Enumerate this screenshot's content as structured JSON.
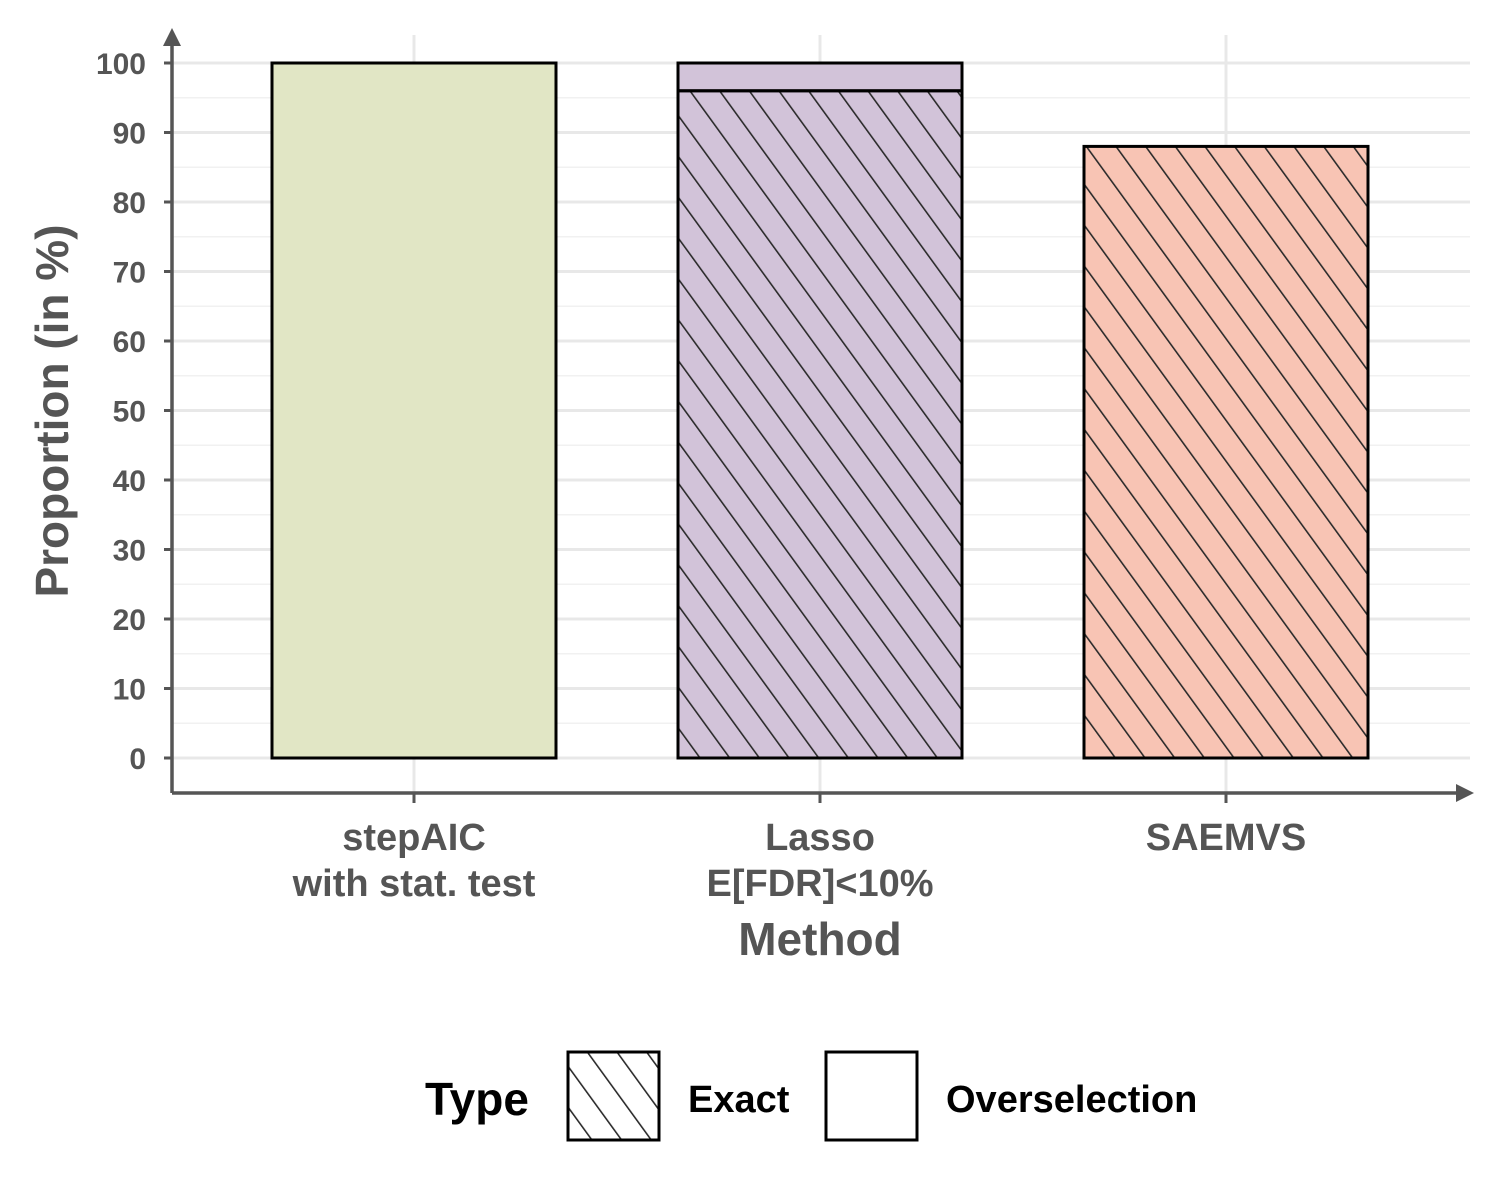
{
  "chart_data": {
    "type": "bar",
    "stacked": true,
    "xlabel": "Method",
    "ylabel": "Proportion (in %)",
    "ylim": [
      -5,
      105
    ],
    "yticks": [
      0,
      10,
      20,
      30,
      40,
      50,
      60,
      70,
      80,
      90,
      100
    ],
    "grid": true,
    "legend": {
      "title": "Type",
      "position": "bottom",
      "entries": [
        {
          "label": "Exact",
          "pattern": "stripe"
        },
        {
          "label": "Overselection",
          "pattern": "none"
        }
      ]
    },
    "categories": [
      {
        "lines": [
          "stepAIC",
          "with stat. test"
        ],
        "color": "#E1E6C5"
      },
      {
        "lines": [
          "Lasso",
          "E[FDR]<10%"
        ],
        "color": "#D2C3D9"
      },
      {
        "lines": [
          "SAEMVS"
        ],
        "color": "#F8C4B4"
      }
    ],
    "series": [
      {
        "name": "Exact",
        "values": [
          0,
          96,
          88
        ]
      },
      {
        "name": "Overselection",
        "values": [
          100,
          4,
          0
        ]
      }
    ]
  }
}
